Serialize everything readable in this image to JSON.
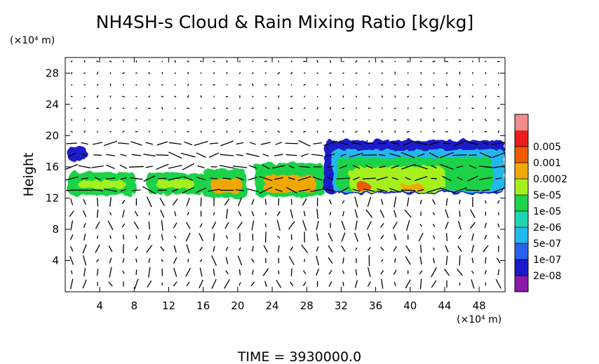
{
  "chart_data": {
    "type": "heatmap",
    "title": "NH4SH-s Cloud & Rain Mixing Ratio [kg/kg]",
    "ylabel": "Height",
    "y_unit": "(×10⁴ m)",
    "x_unit": "(×10⁴ m)",
    "footer": "TIME  =  3930000.0",
    "xlim": [
      0,
      51
    ],
    "ylim": [
      0,
      30
    ],
    "x_ticks": [
      {
        "value": 4,
        "label": "4"
      },
      {
        "value": 8,
        "label": "8"
      },
      {
        "value": 12,
        "label": "12"
      },
      {
        "value": 16,
        "label": "16"
      },
      {
        "value": 20,
        "label": "20"
      },
      {
        "value": 24,
        "label": "24"
      },
      {
        "value": 28,
        "label": "28"
      },
      {
        "value": 32,
        "label": "32"
      },
      {
        "value": 36,
        "label": "36"
      },
      {
        "value": 40,
        "label": "40"
      },
      {
        "value": 44,
        "label": "44"
      },
      {
        "value": 48,
        "label": "48"
      }
    ],
    "y_ticks": [
      {
        "value": 4,
        "label": "4"
      },
      {
        "value": 8,
        "label": "8"
      },
      {
        "value": 12,
        "label": "12"
      },
      {
        "value": 16,
        "label": "16"
      },
      {
        "value": 20,
        "label": "20"
      },
      {
        "value": 24,
        "label": "24"
      },
      {
        "value": 28,
        "label": "28"
      }
    ],
    "colorbar": {
      "colors": [
        "#8b1aaa",
        "#1a1ac8",
        "#2a62ee",
        "#21b8ee",
        "#1ed6b4",
        "#1ed24a",
        "#a6f01e",
        "#f0a800",
        "#f05a00",
        "#e81e1e",
        "#f08c8c"
      ],
      "labels": [
        {
          "value": "2e-08",
          "index": 1
        },
        {
          "value": "1e-07",
          "index": 2
        },
        {
          "value": "5e-07",
          "index": 3
        },
        {
          "value": "2e-06",
          "index": 4
        },
        {
          "value": "1e-05",
          "index": 5
        },
        {
          "value": "5e-05",
          "index": 6
        },
        {
          "value": "0.0002",
          "index": 7
        },
        {
          "value": "0.001",
          "index": 8
        },
        {
          "value": "0.005",
          "index": 9
        }
      ]
    },
    "cloud_regions": [
      {
        "x0": 0.2,
        "x1": 2.5,
        "y0": 16.8,
        "y1": 18.6,
        "level": 1
      },
      {
        "x0": 0.3,
        "x1": 8.2,
        "y0": 12.4,
        "y1": 15.3,
        "level": 5
      },
      {
        "x0": 9.5,
        "x1": 16.3,
        "y0": 12.5,
        "y1": 15.2,
        "level": 5
      },
      {
        "x0": 16.0,
        "x1": 21.0,
        "y0": 12.0,
        "y1": 15.8,
        "level": 5
      },
      {
        "x0": 22.0,
        "x1": 30.0,
        "y0": 12.2,
        "y1": 16.5,
        "level": 5
      },
      {
        "x0": 30.0,
        "x1": 51.0,
        "y0": 12.6,
        "y1": 19.4,
        "level": 1
      },
      {
        "x0": 31.0,
        "x1": 51.0,
        "y0": 12.8,
        "y1": 18.2,
        "level": 3
      },
      {
        "x0": 31.5,
        "x1": 49.5,
        "y0": 13.0,
        "y1": 17.2,
        "level": 5
      },
      {
        "x0": 1.5,
        "x1": 7.0,
        "y0": 13.2,
        "y1": 14.3,
        "level": 6
      },
      {
        "x0": 10.5,
        "x1": 15.0,
        "y0": 13.3,
        "y1": 14.4,
        "level": 6
      },
      {
        "x0": 17.0,
        "x1": 20.5,
        "y0": 12.6,
        "y1": 14.5,
        "level": 7
      },
      {
        "x0": 23.0,
        "x1": 29.0,
        "y0": 12.7,
        "y1": 14.8,
        "level": 7
      },
      {
        "x0": 33.0,
        "x1": 44.0,
        "y0": 12.8,
        "y1": 16.0,
        "level": 6
      },
      {
        "x0": 33.8,
        "x1": 35.4,
        "y0": 12.9,
        "y1": 14.0,
        "level": 8
      },
      {
        "x0": 39.0,
        "x1": 41.5,
        "y0": 13.0,
        "y1": 13.8,
        "level": 7
      }
    ]
  }
}
